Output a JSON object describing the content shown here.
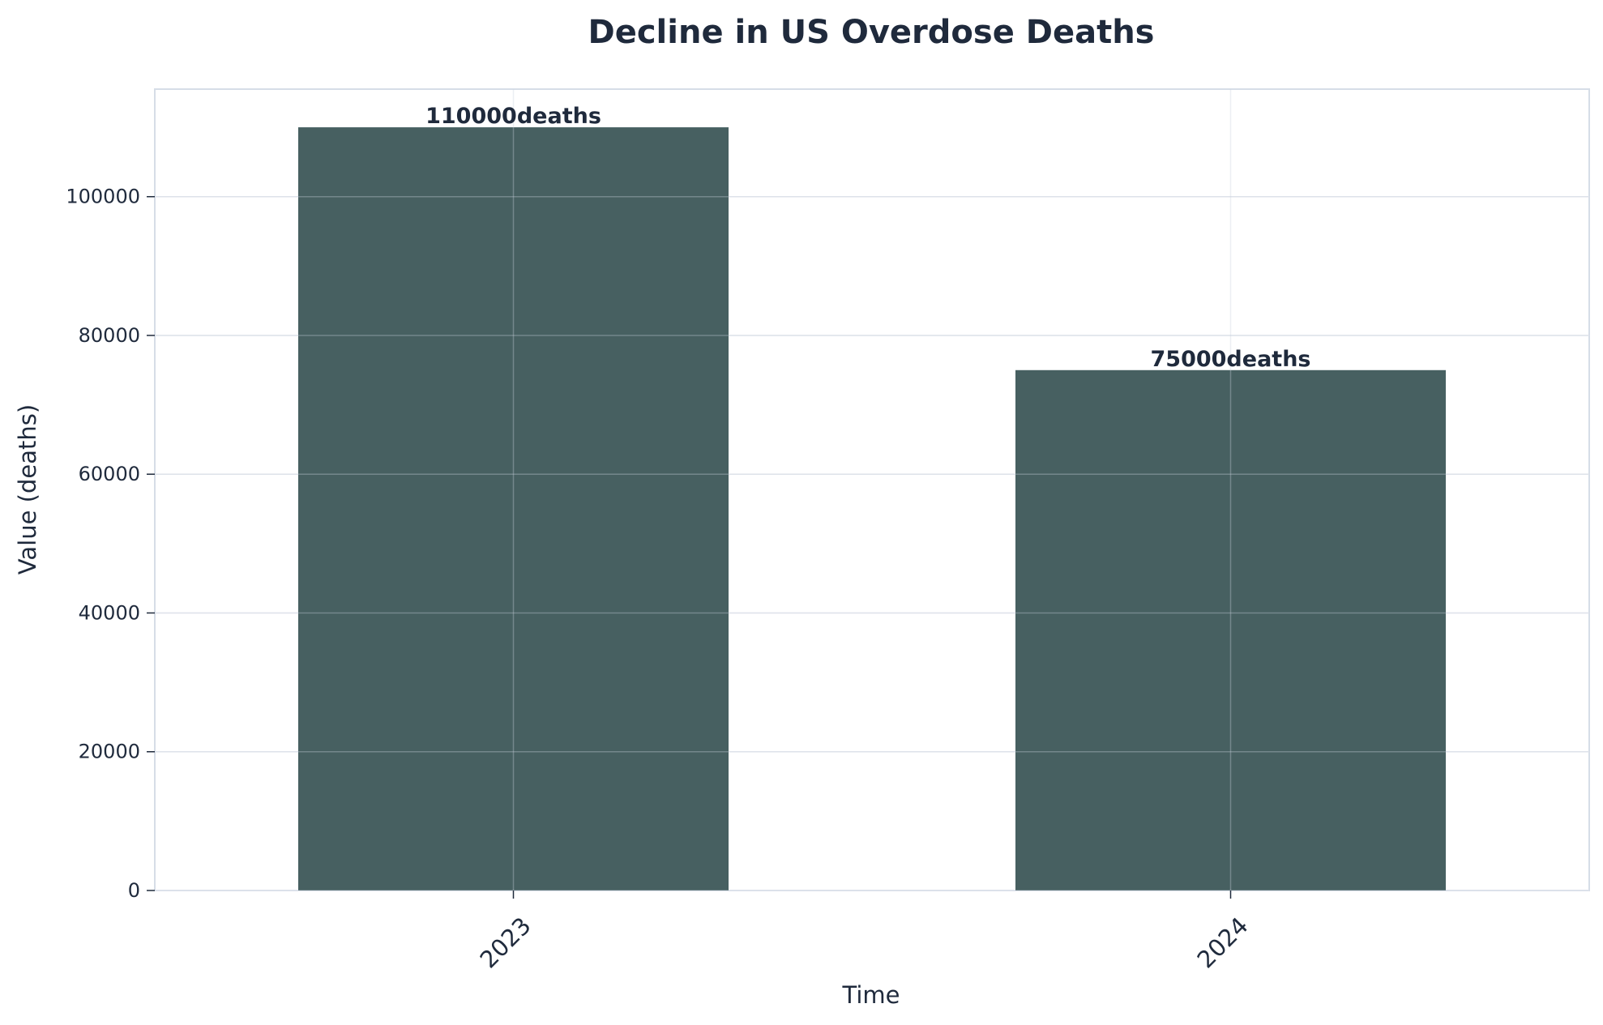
{
  "chart_data": {
    "type": "bar",
    "title": "Decline in US Overdose Deaths",
    "xlabel": "Time",
    "ylabel": "Value (deaths)",
    "categories": [
      "2023",
      "2024"
    ],
    "values": [
      110000,
      75000
    ],
    "data_labels": [
      "110000deaths",
      "75000deaths"
    ],
    "yticks": [
      0,
      20000,
      40000,
      60000,
      80000,
      100000
    ],
    "ylim": [
      0,
      115500
    ],
    "grid": true,
    "bar_color": "#476061",
    "frame_color": "#d6dde7",
    "text_color": "#1f2a3c"
  }
}
